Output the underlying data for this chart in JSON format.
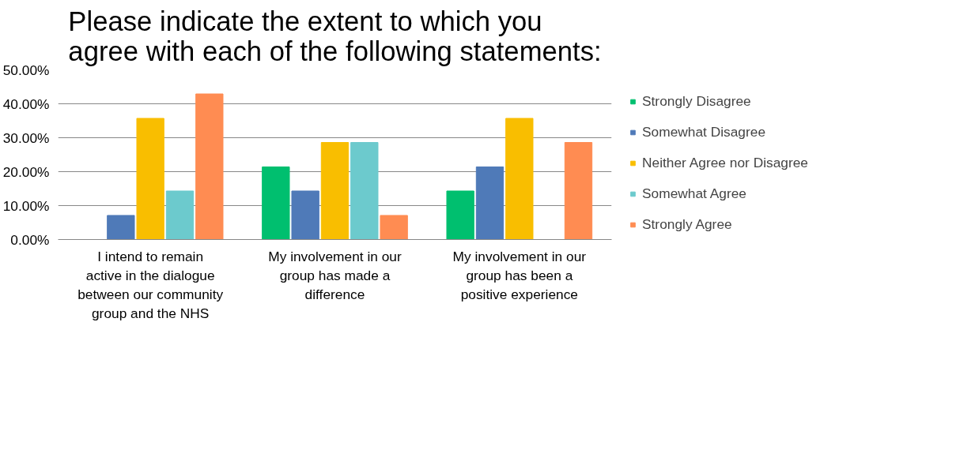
{
  "chart_data": {
    "type": "bar",
    "title": "Please indicate the extent to which you agree with each of the following statements:",
    "categories": [
      "I intend to remain active in the dialogue between our community group and the NHS",
      "My involvement in our group has made a difference",
      "My involvement in our group has been a positive experience"
    ],
    "series": [
      {
        "name": "Strongly Disagree",
        "color": "#00bf6f",
        "values": [
          0,
          21.4,
          14.3
        ]
      },
      {
        "name": "Somewhat Disagree",
        "color": "#4f7ab8",
        "values": [
          7.1,
          14.3,
          21.4
        ]
      },
      {
        "name": "Neither Agree nor Disagree",
        "color": "#f9be00",
        "values": [
          35.7,
          28.6,
          35.7
        ]
      },
      {
        "name": "Somewhat Agree",
        "color": "#6ccacd",
        "values": [
          14.3,
          28.6,
          0
        ]
      },
      {
        "name": "Strongly Agree",
        "color": "#ff8c52",
        "values": [
          42.9,
          7.1,
          28.6
        ]
      }
    ],
    "ylim": [
      0,
      50
    ],
    "yticks": [
      {
        "value": 0,
        "label": "0.00%"
      },
      {
        "value": 10,
        "label": "10.00%"
      },
      {
        "value": 20,
        "label": "20.00%"
      },
      {
        "value": 30,
        "label": "30.00%"
      },
      {
        "value": 40,
        "label": "40.00%"
      },
      {
        "value": 50,
        "label": "50.00%"
      }
    ],
    "grid": "y",
    "legend": "right"
  }
}
